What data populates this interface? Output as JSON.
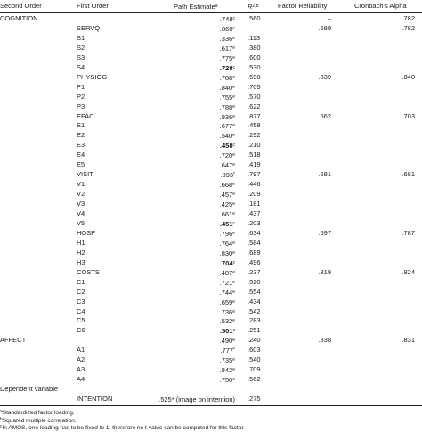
{
  "headers": {
    "second_order": "Second Order",
    "first_order": "First Order",
    "path_estimate": "Path Estimate",
    "path_estimate_sup": "a",
    "r2": "R",
    "r2_sup": "2,b",
    "factor_reliability": "Factor Reliability",
    "cronbach": "Cronbach's Alpha"
  },
  "rows": [
    {
      "so": "COGNITION",
      "fo": "",
      "pe": ".748",
      "pe_sup": "c",
      "pe_bold": false,
      "r2": ".560",
      "fr": "–",
      "ca": ".782"
    },
    {
      "so": "",
      "fo": "SERVQ",
      "pe": ".860",
      "pe_sup": "c",
      "pe_bold": false,
      "r2": "",
      "fr": ".689",
      "ca": ".782"
    },
    {
      "so": "",
      "fo": "S1",
      "pe": ".336",
      "pe_sup": "e",
      "pe_bold": false,
      "r2": ".113",
      "fr": "",
      "ca": ""
    },
    {
      "so": "",
      "fo": "S2",
      "pe": ".617",
      "pe_sup": "e",
      "pe_bold": false,
      "r2": ".380",
      "fr": "",
      "ca": ""
    },
    {
      "so": "",
      "fo": "S3",
      "pe": ".775",
      "pe_sup": "e",
      "pe_bold": false,
      "r2": ".600",
      "fr": "",
      "ca": ""
    },
    {
      "so": "",
      "fo": "S4",
      "pe": ".728",
      "pe_sup": "c",
      "pe_bold": true,
      "r2": ".530",
      "fr": "",
      "ca": ""
    },
    {
      "so": "",
      "fo": "PHYSIOG",
      "pe": ".768",
      "pe_sup": "e",
      "pe_bold": false,
      "r2": ".590",
      "fr": ".839",
      "ca": ".840"
    },
    {
      "so": "",
      "fo": "P1",
      "pe": ".840",
      "pe_sup": "e",
      "pe_bold": false,
      "r2": ".705",
      "fr": "",
      "ca": ""
    },
    {
      "so": "",
      "fo": "P2",
      "pe": ".755",
      "pe_sup": "e",
      "pe_bold": false,
      "r2": ".570",
      "fr": "",
      "ca": ""
    },
    {
      "so": "",
      "fo": "P3",
      "pe": ".788",
      "pe_sup": "e",
      "pe_bold": false,
      "r2": ".622",
      "fr": "",
      "ca": ""
    },
    {
      "so": "",
      "fo": "EFAC",
      "pe": ".936",
      "pe_sup": "e",
      "pe_bold": false,
      "r2": ".877",
      "fr": ".662",
      "ca": ".703"
    },
    {
      "so": "",
      "fo": "E1",
      "pe": ".677",
      "pe_sup": "e",
      "pe_bold": false,
      "r2": ".458",
      "fr": "",
      "ca": ""
    },
    {
      "so": "",
      "fo": "E2",
      "pe": ".540",
      "pe_sup": "e",
      "pe_bold": false,
      "r2": ".292",
      "fr": "",
      "ca": ""
    },
    {
      "so": "",
      "fo": "E3",
      "pe": ".458",
      "pe_sup": "c",
      "pe_bold": true,
      "r2": ".210",
      "fr": "",
      "ca": ""
    },
    {
      "so": "",
      "fo": "E4",
      "pe": ".720",
      "pe_sup": "e",
      "pe_bold": false,
      "r2": ".518",
      "fr": "",
      "ca": ""
    },
    {
      "so": "",
      "fo": "E5",
      "pe": ".647",
      "pe_sup": "e",
      "pe_bold": false,
      "r2": ".419",
      "fr": "",
      "ca": ""
    },
    {
      "so": "",
      "fo": "VISIT",
      "pe": ".893",
      "pe_sup": "*",
      "pe_bold": false,
      "r2": ".797",
      "fr": ".681",
      "ca": ".681"
    },
    {
      "so": "",
      "fo": "V1",
      "pe": ".668",
      "pe_sup": "e",
      "pe_bold": false,
      "r2": ".446",
      "fr": "",
      "ca": ""
    },
    {
      "so": "",
      "fo": "V2",
      "pe": ".457",
      "pe_sup": "e",
      "pe_bold": false,
      "r2": ".209",
      "fr": "",
      "ca": ""
    },
    {
      "so": "",
      "fo": "V3",
      "pe": ".425",
      "pe_sup": "e",
      "pe_bold": false,
      "r2": ".181",
      "fr": "",
      "ca": ""
    },
    {
      "so": "",
      "fo": "V4",
      "pe": ".661",
      "pe_sup": "e",
      "pe_bold": false,
      "r2": ".437",
      "fr": "",
      "ca": ""
    },
    {
      "so": "",
      "fo": "V5",
      "pe": ".451",
      "pe_sup": "c",
      "pe_bold": true,
      "r2": ".203",
      "fr": "",
      "ca": ""
    },
    {
      "so": "",
      "fo": "HOSP",
      "pe": ".796",
      "pe_sup": "e",
      "pe_bold": false,
      "r2": ".634",
      "fr": ".697",
      "ca": ".787"
    },
    {
      "so": "",
      "fo": "H1",
      "pe": ".764",
      "pe_sup": "e",
      "pe_bold": false,
      "r2": ".584",
      "fr": "",
      "ca": ""
    },
    {
      "so": "",
      "fo": "H2",
      "pe": ".830",
      "pe_sup": "e",
      "pe_bold": false,
      "r2": ".689",
      "fr": "",
      "ca": ""
    },
    {
      "so": "",
      "fo": "H3",
      "pe": ".704",
      "pe_sup": "c",
      "pe_bold": true,
      "r2": ".496",
      "fr": "",
      "ca": ""
    },
    {
      "so": "",
      "fo": "COSTS",
      "pe": ".487",
      "pe_sup": "e",
      "pe_bold": false,
      "r2": ".237",
      "fr": ".819",
      "ca": ".824"
    },
    {
      "so": "",
      "fo": "C1",
      "pe": ".721",
      "pe_sup": "e",
      "pe_bold": false,
      "r2": ".520",
      "fr": "",
      "ca": ""
    },
    {
      "so": "",
      "fo": "C2",
      "pe": ".744",
      "pe_sup": "e",
      "pe_bold": false,
      "r2": ".554",
      "fr": "",
      "ca": ""
    },
    {
      "so": "",
      "fo": "C3",
      "pe": ".659",
      "pe_sup": "e",
      "pe_bold": false,
      "r2": ".434",
      "fr": "",
      "ca": ""
    },
    {
      "so": "",
      "fo": "C4",
      "pe": ".736",
      "pe_sup": "e",
      "pe_bold": false,
      "r2": ".542",
      "fr": "",
      "ca": ""
    },
    {
      "so": "",
      "fo": "C5",
      "pe": ".532",
      "pe_sup": "e",
      "pe_bold": false,
      "r2": ".283",
      "fr": "",
      "ca": ""
    },
    {
      "so": "",
      "fo": "C6",
      "pe": ".501",
      "pe_sup": "c",
      "pe_bold": true,
      "r2": ".251",
      "fr": "",
      "ca": ""
    },
    {
      "so": "AFFECT",
      "fo": "",
      "pe": ".490",
      "pe_sup": "e",
      "pe_bold": false,
      "r2": ".240",
      "fr": ".838",
      "ca": ".831"
    },
    {
      "so": "",
      "fo": "A1",
      "pe": ".777",
      "pe_sup": "*",
      "pe_bold": false,
      "r2": ".603",
      "fr": "",
      "ca": ""
    },
    {
      "so": "",
      "fo": "A2",
      "pe": ".735",
      "pe_sup": "e",
      "pe_bold": false,
      "r2": ".540",
      "fr": "",
      "ca": ""
    },
    {
      "so": "",
      "fo": "A3",
      "pe": ".842",
      "pe_sup": "e",
      "pe_bold": false,
      "r2": ".709",
      "fr": "",
      "ca": ""
    },
    {
      "so": "",
      "fo": "A4",
      "pe": ".750",
      "pe_sup": "e",
      "pe_bold": false,
      "r2": ".562",
      "fr": "",
      "ca": ""
    },
    {
      "so": "Dependent variable",
      "fo": "",
      "pe": "",
      "pe_sup": "",
      "pe_bold": false,
      "r2": "",
      "fr": "",
      "ca": ""
    },
    {
      "so": "",
      "fo": "INTENTION",
      "pe": ".525* (image on intention)",
      "pe_sup": "",
      "pe_bold": false,
      "r2": ".275",
      "fr": "",
      "ca": ""
    }
  ],
  "notes": [
    {
      "sup": "a",
      "text": "Standardized factor loading."
    },
    {
      "sup": "b",
      "text": "Squared multiple correlation."
    },
    {
      "sup": "c",
      "text": "In AMOS, one loading has to be fixed to 1; therefore no t-value can be computed for this factor."
    }
  ]
}
